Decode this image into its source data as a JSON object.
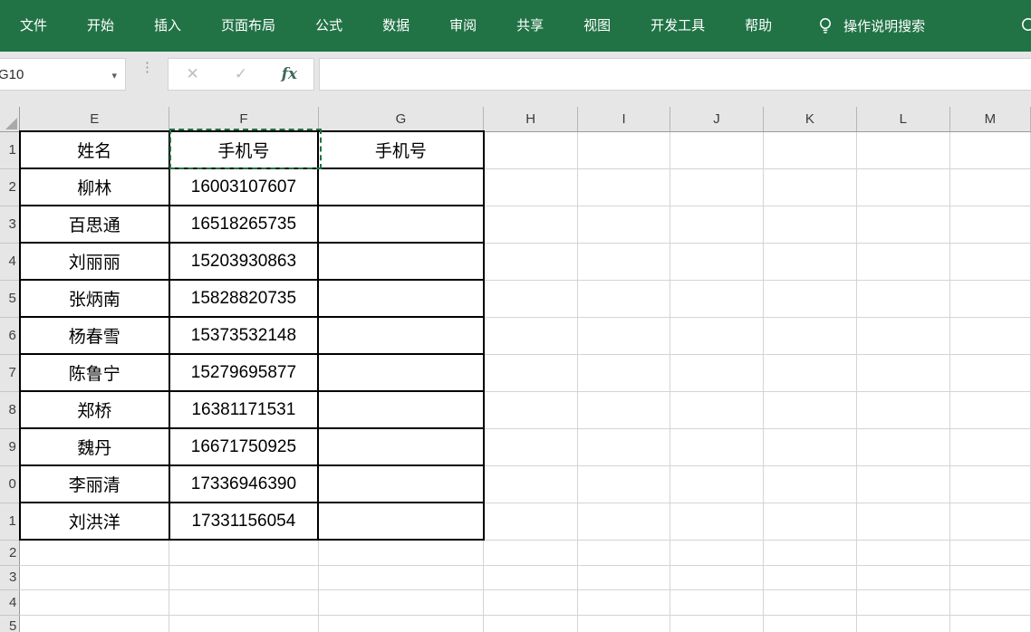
{
  "colors": {
    "ribbon_green": "#217346",
    "marching_ants": "#217346",
    "table_border": "#000000"
  },
  "ribbon": {
    "tabs": [
      "文件",
      "开始",
      "插入",
      "页面布局",
      "公式",
      "数据",
      "审阅",
      "共享",
      "视图",
      "开发工具",
      "帮助"
    ],
    "tell_me_label": "操作说明搜索"
  },
  "formula_bar": {
    "name_box_value": "G10",
    "cancel_label": "✕",
    "enter_label": "✓",
    "fx_label": "fx",
    "dropdown_glyph": "▾",
    "grip_glyph": "⋮",
    "formula_value": ""
  },
  "sheet": {
    "column_headers": [
      "E",
      "F",
      "G",
      "H",
      "I",
      "J",
      "K",
      "L",
      "M"
    ],
    "row_headers": [
      "1",
      "2",
      "3",
      "4",
      "5",
      "6",
      "7",
      "8",
      "9",
      "0",
      "1",
      "2",
      "3",
      "4",
      "5"
    ],
    "active_cell": "G10",
    "copied_cell": "F1",
    "table": {
      "headers": [
        "姓名",
        "手机号",
        "手机号"
      ],
      "rows": [
        [
          "柳林",
          "16003107607",
          ""
        ],
        [
          "百思通",
          "16518265735",
          ""
        ],
        [
          "刘丽丽",
          "15203930863",
          ""
        ],
        [
          "张炳南",
          "15828820735",
          ""
        ],
        [
          "杨春雪",
          "15373532148",
          ""
        ],
        [
          "陈鲁宁",
          "15279695877",
          ""
        ],
        [
          "郑桥",
          "16381171531",
          ""
        ],
        [
          "魏丹",
          "16671750925",
          ""
        ],
        [
          "李丽清",
          "17336946390",
          ""
        ],
        [
          "刘洪洋",
          "17331156054",
          ""
        ]
      ]
    }
  }
}
